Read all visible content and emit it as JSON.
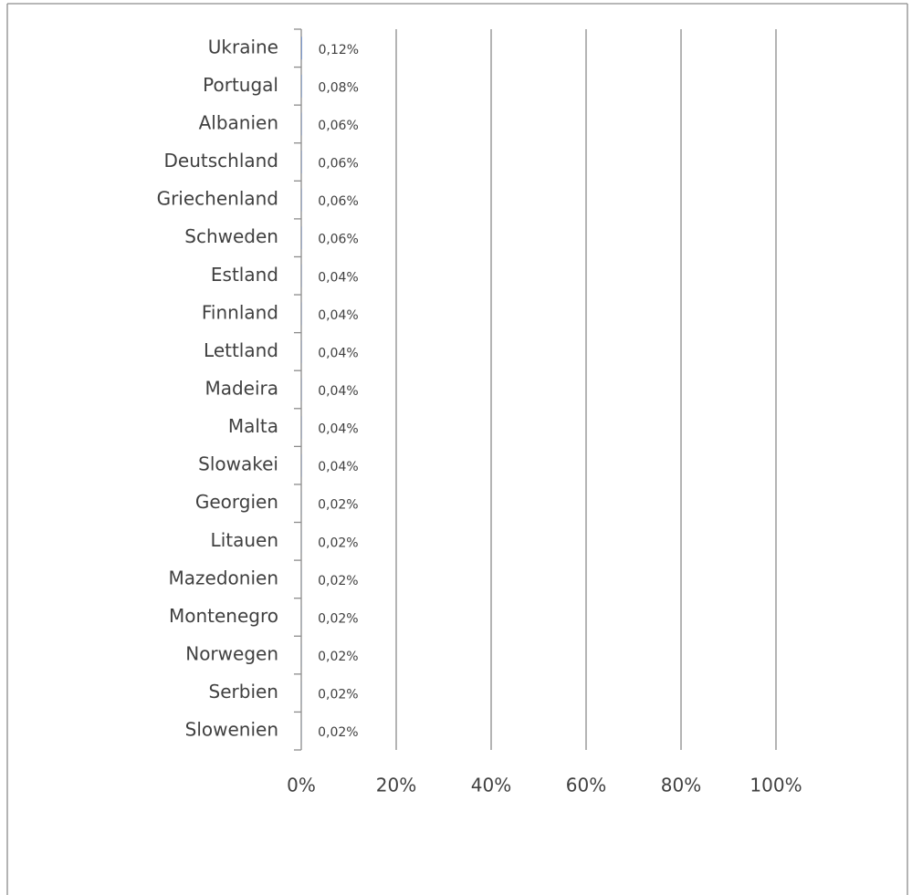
{
  "chart_data": {
    "type": "bar",
    "orientation": "horizontal",
    "categories": [
      "Ukraine",
      "Portugal",
      "Albanien",
      "Deutschland",
      "Griechenland",
      "Schweden",
      "Estland",
      "Finnland",
      "Lettland",
      "Madeira",
      "Malta",
      "Slowakei",
      "Georgien",
      "Litauen",
      "Mazedonien",
      "Montenegro",
      "Norwegen",
      "Serbien",
      "Slowenien"
    ],
    "values": [
      0.12,
      0.08,
      0.06,
      0.06,
      0.06,
      0.06,
      0.04,
      0.04,
      0.04,
      0.04,
      0.04,
      0.04,
      0.02,
      0.02,
      0.02,
      0.02,
      0.02,
      0.02,
      0.02
    ],
    "value_labels": [
      "0,12%",
      "0,08%",
      "0,06%",
      "0,06%",
      "0,06%",
      "0,06%",
      "0,04%",
      "0,04%",
      "0,04%",
      "0,04%",
      "0,04%",
      "0,04%",
      "0,02%",
      "0,02%",
      "0,02%",
      "0,02%",
      "0,02%",
      "0,02%",
      "0,02%"
    ],
    "xlim": [
      0,
      100
    ],
    "xticks": [
      {
        "value": 0,
        "label": "0%"
      },
      {
        "value": 20,
        "label": "20%"
      },
      {
        "value": 40,
        "label": "40%"
      },
      {
        "value": 60,
        "label": "60%"
      },
      {
        "value": 80,
        "label": "80%"
      },
      {
        "value": 100,
        "label": "100%"
      }
    ],
    "grid": true
  }
}
